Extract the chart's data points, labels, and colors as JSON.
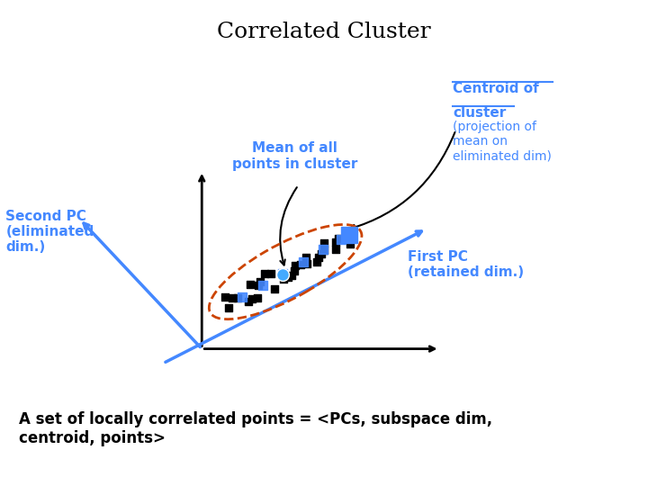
{
  "title": "Correlated Cluster",
  "title_fontsize": 18,
  "title_color": "#000000",
  "bg_color": "#ffffff",
  "axis_color": "#000000",
  "blue_color": "#4488ff",
  "cluster_ellipse_color": "#cc4400",
  "mean_dot_color": "#44aaff",
  "label_mean": "Mean of all\npoints in cluster",
  "label_centroid_line1": "Centroid of",
  "label_centroid_line2": "cluster",
  "label_centroid_sub": "(projection of\nmean on\neliminated dim)",
  "label_first_pc": "First PC\n(retained dim.)",
  "label_second_pc": "Second PC\n(eliminated\ndim.)",
  "label_bottom": "A set of locally correlated points = <PCs, subspace dim,\ncentroid, points>",
  "figsize": [
    7.2,
    5.4
  ],
  "dpi": 100
}
